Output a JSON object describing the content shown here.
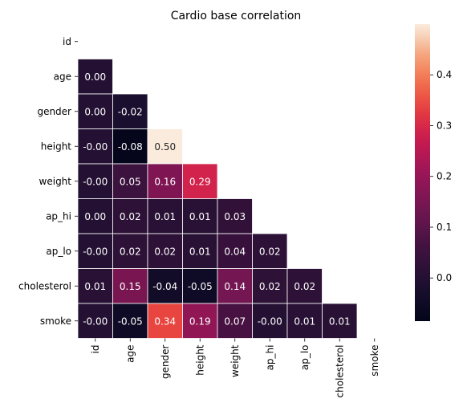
{
  "chart_data": {
    "type": "heatmap",
    "title": "Cardio base correlation",
    "variables": [
      "id",
      "age",
      "gender",
      "height",
      "weight",
      "ap_hi",
      "ap_lo",
      "cholesterol",
      "smoke"
    ],
    "matrix_lower": [
      [],
      [
        0.0
      ],
      [
        0.0,
        -0.02
      ],
      [
        -0.0,
        -0.08,
        0.5
      ],
      [
        -0.0,
        0.05,
        0.16,
        0.29
      ],
      [
        0.0,
        0.02,
        0.01,
        0.01,
        0.03
      ],
      [
        -0.0,
        0.02,
        0.02,
        0.01,
        0.04,
        0.02
      ],
      [
        0.01,
        0.15,
        -0.04,
        -0.05,
        0.14,
        0.02,
        0.02
      ],
      [
        -0.0,
        -0.05,
        0.34,
        0.19,
        0.07,
        -0.0,
        0.01,
        0.01
      ]
    ],
    "labels_lower": [
      [],
      [
        "0.00"
      ],
      [
        "0.00",
        "-0.02"
      ],
      [
        "-0.00",
        "-0.08",
        "0.50"
      ],
      [
        "-0.00",
        "0.05",
        "0.16",
        "0.29"
      ],
      [
        "0.00",
        "0.02",
        "0.01",
        "0.01",
        "0.03"
      ],
      [
        "-0.00",
        "0.02",
        "0.02",
        "0.01",
        "0.04",
        "0.02"
      ],
      [
        "0.01",
        "0.15",
        "-0.04",
        "-0.05",
        "0.14",
        "0.02",
        "0.02"
      ],
      [
        "-0.00",
        "-0.05",
        "0.34",
        "0.19",
        "0.07",
        "-0.00",
        "0.01",
        "0.01"
      ]
    ],
    "mask": "upper-triangle-including-diagonal",
    "colormap": "rocket",
    "vmin": -0.085,
    "vmax": 0.5,
    "colorbar": {
      "ticks": [
        0.0,
        0.1,
        0.2,
        0.3,
        0.4
      ],
      "tick_labels": [
        "0.0",
        "0.1",
        "0.2",
        "0.3",
        "0.4"
      ]
    },
    "grid": "white cell borders",
    "legend": "colorbar-right"
  }
}
